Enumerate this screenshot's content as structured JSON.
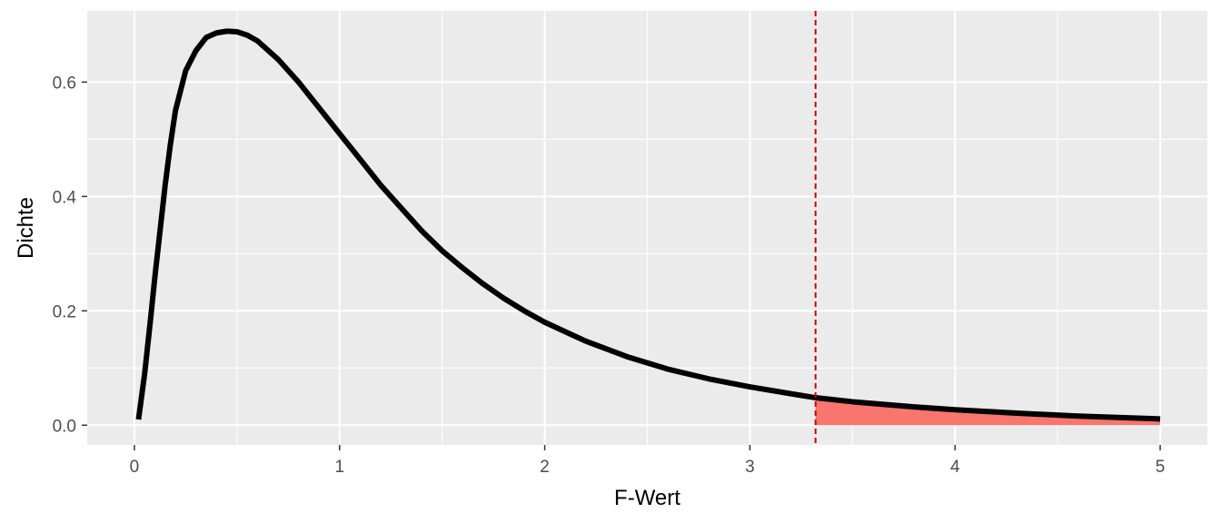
{
  "chart_data": {
    "type": "line",
    "title": "",
    "xlabel": "F-Wert",
    "ylabel": "Dichte",
    "xlim": [
      -0.23,
      5.23
    ],
    "ylim": [
      -0.0345,
      0.7245
    ],
    "x_ticks": [
      0,
      1,
      2,
      3,
      4,
      5
    ],
    "x_tick_labels": [
      "0",
      "1",
      "2",
      "3",
      "4",
      "5"
    ],
    "y_ticks": [
      0.0,
      0.2,
      0.4,
      0.6
    ],
    "y_tick_labels": [
      "0.0",
      "0.2",
      "0.4",
      "0.6"
    ],
    "grid": true,
    "critical_value": 3.32,
    "series": [
      {
        "color": "#000000",
        "x": [
          0.02,
          0.05,
          0.08,
          0.1,
          0.125,
          0.15,
          0.175,
          0.2,
          0.25,
          0.3,
          0.35,
          0.4,
          0.45,
          0.5,
          0.55,
          0.6,
          0.7,
          0.8,
          0.9,
          1.0,
          1.1,
          1.2,
          1.3,
          1.4,
          1.5,
          1.6,
          1.7,
          1.8,
          1.9,
          2.0,
          2.2,
          2.4,
          2.6,
          2.8,
          3.0,
          3.2,
          3.32,
          3.5,
          3.8,
          4.0,
          4.3,
          4.6,
          5.0
        ],
        "y": [
          0.01,
          0.09,
          0.19,
          0.26,
          0.34,
          0.42,
          0.49,
          0.55,
          0.62,
          0.655,
          0.678,
          0.686,
          0.689,
          0.688,
          0.682,
          0.672,
          0.64,
          0.6,
          0.555,
          0.51,
          0.465,
          0.42,
          0.38,
          0.34,
          0.305,
          0.275,
          0.247,
          0.222,
          0.2,
          0.18,
          0.147,
          0.12,
          0.098,
          0.081,
          0.067,
          0.055,
          0.048,
          0.041,
          0.032,
          0.027,
          0.021,
          0.016,
          0.011
        ]
      }
    ],
    "shaded_region": {
      "color": "#f8766d",
      "from_x": 3.32,
      "to_x": 5.0
    },
    "colors": {
      "panel": "#ebebeb",
      "grid": "#ffffff",
      "curve": "#000000",
      "critical_line": "#cc0000",
      "shade": "#f8766d"
    }
  }
}
